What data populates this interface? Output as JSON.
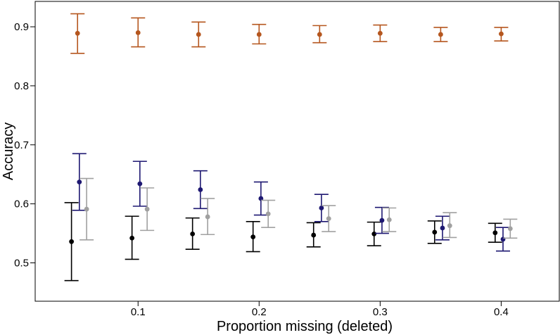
{
  "chart_data": {
    "type": "scatter",
    "title": "",
    "xlabel": "Proportion missing (deleted)",
    "ylabel": "Accuracy",
    "xlim": [
      0.015,
      0.448
    ],
    "ylim": [
      0.435,
      0.943
    ],
    "x_ticks": [
      0.1,
      0.2,
      0.3,
      0.4
    ],
    "x_tick_labels": [
      "0.1",
      "0.2",
      "0.3",
      "0.4"
    ],
    "y_ticks": [
      0.5,
      0.6,
      0.7,
      0.8,
      0.9
    ],
    "y_tick_labels": [
      "0.5",
      "0.6",
      "0.7",
      "0.8",
      "0.9"
    ],
    "grid": false,
    "legend": "none",
    "error_bars": true,
    "series": [
      {
        "color": "#b5561e",
        "x": [
          0.05,
          0.1,
          0.15,
          0.2,
          0.25,
          0.3,
          0.35,
          0.4
        ],
        "y": [
          0.889,
          0.89,
          0.887,
          0.887,
          0.887,
          0.889,
          0.887,
          0.888
        ],
        "lower": [
          0.855,
          0.866,
          0.866,
          0.871,
          0.873,
          0.875,
          0.875,
          0.876
        ],
        "upper": [
          0.922,
          0.915,
          0.908,
          0.904,
          0.902,
          0.903,
          0.899,
          0.899
        ]
      },
      {
        "color": "#000000",
        "x": [
          0.045,
          0.095,
          0.145,
          0.195,
          0.245,
          0.295,
          0.345,
          0.395
        ],
        "y": [
          0.536,
          0.542,
          0.549,
          0.544,
          0.547,
          0.549,
          0.552,
          0.551
        ],
        "lower": [
          0.47,
          0.506,
          0.523,
          0.519,
          0.527,
          0.529,
          0.533,
          0.535
        ],
        "upper": [
          0.602,
          0.579,
          0.576,
          0.57,
          0.568,
          0.569,
          0.571,
          0.567
        ]
      },
      {
        "color": "#1e1872",
        "x": [
          0.0515,
          0.1015,
          0.1515,
          0.2015,
          0.2515,
          0.3015,
          0.3515,
          0.4015
        ],
        "y": [
          0.637,
          0.634,
          0.624,
          0.609,
          0.593,
          0.572,
          0.559,
          0.54
        ],
        "lower": [
          0.589,
          0.596,
          0.592,
          0.581,
          0.57,
          0.55,
          0.539,
          0.52
        ],
        "upper": [
          0.685,
          0.672,
          0.656,
          0.637,
          0.616,
          0.594,
          0.579,
          0.56
        ]
      },
      {
        "color": "#a0a0a0",
        "x": [
          0.0575,
          0.1075,
          0.1575,
          0.2075,
          0.2575,
          0.3075,
          0.3575,
          0.4075
        ],
        "y": [
          0.591,
          0.591,
          0.578,
          0.583,
          0.575,
          0.573,
          0.563,
          0.558
        ],
        "lower": [
          0.539,
          0.555,
          0.548,
          0.56,
          0.553,
          0.553,
          0.543,
          0.542
        ],
        "upper": [
          0.643,
          0.627,
          0.609,
          0.606,
          0.597,
          0.593,
          0.585,
          0.574
        ]
      }
    ]
  }
}
